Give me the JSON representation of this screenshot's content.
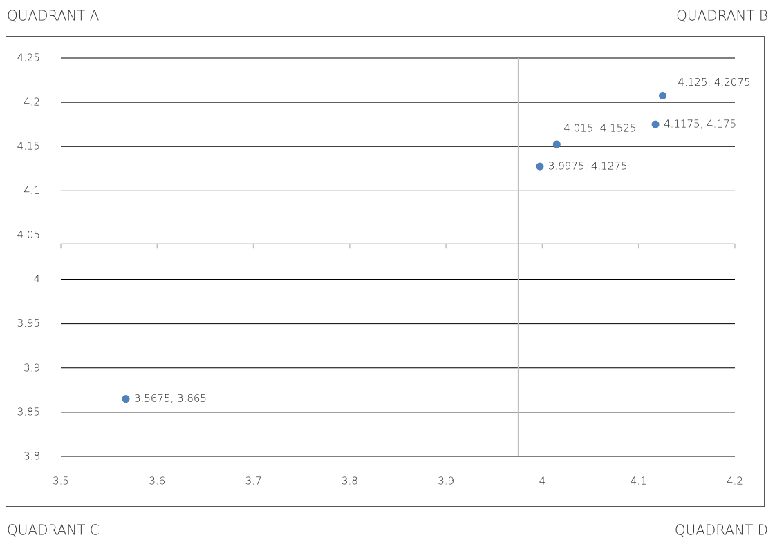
{
  "chart_data": {
    "type": "scatter",
    "corner_labels": [
      "QUADRANT A",
      "QUADRANT B",
      "QUADRANT C",
      "QUADRANT D"
    ],
    "x": [
      3.5675,
      3.9975,
      4.015,
      4.1175,
      4.125
    ],
    "values": [
      3.865,
      4.1275,
      4.1525,
      4.175,
      4.2075
    ],
    "value_labels": [
      "3.5675, 3.865",
      "3.9975, 4.1275",
      "4.015, 4.1525",
      "4.1175, 4.175",
      "4.125, 4.2075"
    ],
    "color": "#4f81bd",
    "xlim": [
      3.5,
      4.2
    ],
    "xticks": [
      3.5,
      3.6,
      3.7,
      3.8,
      3.9,
      4,
      4.1,
      4.2
    ],
    "ylim": [
      3.8,
      4.25
    ],
    "yticks": [
      3.8,
      3.85,
      3.9,
      3.95,
      4,
      4.05,
      4.1,
      4.15,
      4.2,
      4.25
    ],
    "x_cross": 3.975,
    "y_cross": 4.04,
    "grid": true
  }
}
